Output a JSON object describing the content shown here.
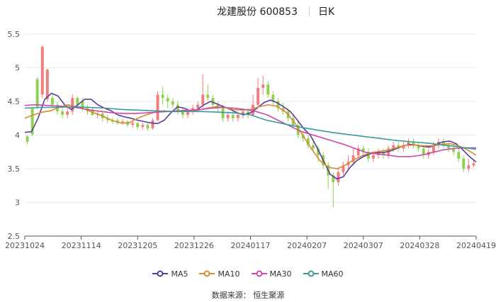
{
  "header": {
    "stock_name": "龙建股份 600853",
    "period": "日K"
  },
  "source_text": "数据来源： 恒生聚源",
  "colors": {
    "up": "#f37b7b",
    "down": "#8fd14f",
    "grid": "#e6ebf5",
    "axis": "#555555"
  },
  "chart_data": {
    "type": "candlestick",
    "title": "龙建股份 600853",
    "xlabel": "",
    "ylabel": "",
    "ylim": [
      2.5,
      5.5
    ],
    "yticks": [
      "2.5",
      "3",
      "3.5",
      "4",
      "4.5",
      "5",
      "5.5"
    ],
    "x_labels": [
      "20231024",
      "20231114",
      "20231205",
      "20231226",
      "20240117",
      "20240207",
      "20240307",
      "20240328",
      "20240419"
    ],
    "legend_position": "bottom",
    "grid": true,
    "legend": [
      {
        "name": "MA5",
        "color": "#5b3d99"
      },
      {
        "name": "MA10",
        "color": "#d98a32"
      },
      {
        "name": "MA30",
        "color": "#c94aaa"
      },
      {
        "name": "MA60",
        "color": "#3b9a9c"
      }
    ],
    "candles": [
      [
        3.98,
        3.9,
        4.0,
        3.86
      ],
      [
        4.4,
        4.01,
        4.42,
        3.98
      ],
      [
        4.83,
        4.42,
        4.86,
        4.38
      ],
      [
        4.6,
        5.31,
        5.34,
        4.55
      ],
      [
        4.53,
        4.97,
        4.98,
        4.5
      ],
      [
        4.55,
        4.45,
        4.6,
        4.4
      ],
      [
        4.45,
        4.35,
        4.5,
        4.3
      ],
      [
        4.35,
        4.3,
        4.4,
        4.25
      ],
      [
        4.3,
        4.35,
        4.4,
        4.25
      ],
      [
        4.35,
        4.55,
        4.6,
        4.3
      ],
      [
        4.55,
        4.45,
        4.58,
        4.4
      ],
      [
        4.5,
        4.4,
        4.55,
        4.35
      ],
      [
        4.4,
        4.35,
        4.45,
        4.3
      ],
      [
        4.38,
        4.3,
        4.4,
        4.28
      ],
      [
        4.3,
        4.32,
        4.35,
        4.25
      ],
      [
        4.32,
        4.25,
        4.35,
        4.2
      ],
      [
        4.25,
        4.22,
        4.3,
        4.18
      ],
      [
        4.22,
        4.2,
        4.26,
        4.16
      ],
      [
        4.22,
        4.18,
        4.25,
        4.15
      ],
      [
        4.18,
        4.2,
        4.24,
        4.15
      ],
      [
        4.2,
        4.15,
        4.22,
        4.12
      ],
      [
        4.15,
        4.18,
        4.2,
        4.1
      ],
      [
        4.18,
        4.12,
        4.2,
        4.08
      ],
      [
        4.12,
        4.15,
        4.18,
        4.08
      ],
      [
        4.15,
        4.1,
        4.18,
        4.06
      ],
      [
        4.1,
        4.22,
        4.25,
        4.08
      ],
      [
        4.22,
        4.6,
        4.65,
        4.2
      ],
      [
        4.6,
        4.55,
        4.72,
        4.45
      ],
      [
        4.55,
        4.5,
        4.6,
        4.4
      ],
      [
        4.5,
        4.45,
        4.55,
        4.4
      ],
      [
        4.45,
        4.35,
        4.5,
        4.3
      ],
      [
        4.35,
        4.3,
        4.4,
        4.25
      ],
      [
        4.3,
        4.35,
        4.4,
        4.25
      ],
      [
        4.35,
        4.4,
        4.45,
        4.3
      ],
      [
        4.4,
        4.45,
        4.5,
        4.35
      ],
      [
        4.45,
        4.6,
        4.9,
        4.4
      ],
      [
        4.6,
        4.55,
        4.75,
        4.5
      ],
      [
        4.55,
        4.45,
        4.6,
        4.4
      ],
      [
        4.45,
        4.4,
        4.5,
        4.35
      ],
      [
        4.4,
        4.25,
        4.45,
        4.2
      ],
      [
        4.25,
        4.3,
        4.35,
        4.2
      ],
      [
        4.3,
        4.25,
        4.35,
        4.2
      ],
      [
        4.25,
        4.3,
        4.35,
        4.2
      ],
      [
        4.3,
        4.35,
        4.4,
        4.25
      ],
      [
        4.35,
        4.3,
        4.4,
        4.25
      ],
      [
        4.3,
        4.45,
        4.6,
        4.28
      ],
      [
        4.45,
        4.7,
        4.85,
        4.4
      ],
      [
        4.7,
        4.75,
        4.88,
        4.6
      ],
      [
        4.75,
        4.6,
        4.8,
        4.55
      ],
      [
        4.6,
        4.5,
        4.65,
        4.45
      ],
      [
        4.5,
        4.4,
        4.55,
        4.35
      ],
      [
        4.4,
        4.35,
        4.48,
        4.3
      ],
      [
        4.35,
        4.25,
        4.4,
        4.2
      ],
      [
        4.25,
        4.15,
        4.3,
        4.1
      ],
      [
        4.15,
        4.0,
        4.2,
        3.95
      ],
      [
        4.0,
        3.95,
        4.05,
        3.9
      ],
      [
        3.95,
        3.85,
        4.0,
        3.8
      ],
      [
        3.85,
        3.8,
        3.95,
        3.75
      ],
      [
        3.8,
        3.7,
        3.85,
        3.6
      ],
      [
        3.7,
        3.55,
        3.75,
        3.5
      ],
      [
        3.55,
        3.4,
        3.6,
        3.2
      ],
      [
        3.4,
        3.3,
        3.45,
        2.92
      ],
      [
        3.3,
        3.45,
        3.5,
        3.25
      ],
      [
        3.45,
        3.55,
        3.6,
        3.4
      ],
      [
        3.55,
        3.6,
        3.7,
        3.5
      ],
      [
        3.6,
        3.7,
        3.8,
        3.55
      ],
      [
        3.7,
        3.8,
        3.85,
        3.65
      ],
      [
        3.8,
        3.75,
        3.85,
        3.7
      ],
      [
        3.75,
        3.65,
        3.8,
        3.6
      ],
      [
        3.65,
        3.7,
        3.75,
        3.6
      ],
      [
        3.7,
        3.75,
        3.8,
        3.65
      ],
      [
        3.75,
        3.7,
        3.8,
        3.65
      ],
      [
        3.7,
        3.8,
        3.85,
        3.65
      ],
      [
        3.8,
        3.85,
        3.9,
        3.75
      ],
      [
        3.85,
        3.8,
        3.9,
        3.75
      ],
      [
        3.8,
        3.85,
        3.9,
        3.75
      ],
      [
        3.85,
        3.9,
        3.95,
        3.8
      ],
      [
        3.9,
        3.85,
        3.95,
        3.8
      ],
      [
        3.85,
        3.8,
        3.9,
        3.75
      ],
      [
        3.8,
        3.7,
        3.85,
        3.65
      ],
      [
        3.7,
        3.75,
        3.8,
        3.65
      ],
      [
        3.75,
        3.85,
        3.9,
        3.7
      ],
      [
        3.85,
        3.9,
        3.95,
        3.8
      ],
      [
        3.9,
        3.85,
        3.95,
        3.8
      ],
      [
        3.85,
        3.8,
        3.9,
        3.75
      ],
      [
        3.8,
        3.75,
        3.85,
        3.7
      ],
      [
        3.75,
        3.65,
        3.8,
        3.6
      ],
      [
        3.65,
        3.5,
        3.7,
        3.45
      ],
      [
        3.5,
        3.55,
        3.65,
        3.45
      ],
      [
        3.55,
        3.58,
        3.62,
        3.52
      ]
    ],
    "ma": {
      "MA5": [
        4.04,
        4.05,
        4.25,
        4.53,
        4.62,
        4.58,
        4.45,
        4.38,
        4.45,
        4.53,
        4.53,
        4.45,
        4.4,
        4.36,
        4.3,
        4.27,
        4.25,
        4.22,
        4.2,
        4.18,
        4.17,
        4.22,
        4.33,
        4.42,
        4.4,
        4.35,
        4.38,
        4.45,
        4.5,
        4.46,
        4.42,
        4.38,
        4.33,
        4.3,
        4.33,
        4.4,
        4.48,
        4.52,
        4.48,
        4.42,
        4.35,
        4.23,
        4.1,
        4.0,
        3.82,
        3.62,
        3.42,
        3.35,
        3.38,
        3.52,
        3.62,
        3.68,
        3.72,
        3.74,
        3.74,
        3.76,
        3.8,
        3.84,
        3.86,
        3.85,
        3.83,
        3.82,
        3.86,
        3.9,
        3.91,
        3.87,
        3.78,
        3.68,
        3.6
      ],
      "MA10": [
        4.25,
        4.3,
        4.34,
        4.36,
        4.42,
        4.45,
        4.42,
        4.38,
        4.33,
        4.28,
        4.22,
        4.18,
        4.18,
        4.25,
        4.3,
        4.34,
        4.36,
        4.35,
        4.35,
        4.36,
        4.37,
        4.4,
        4.42,
        4.41,
        4.38,
        4.37,
        4.38,
        4.42,
        4.45,
        4.43,
        4.35,
        4.2,
        4.0,
        3.8,
        3.62,
        3.52,
        3.5,
        3.56,
        3.64,
        3.7,
        3.74,
        3.76,
        3.78,
        3.82,
        3.85,
        3.85,
        3.84,
        3.84,
        3.86,
        3.87,
        3.84,
        3.78,
        3.7
      ],
      "MA30": [
        4.44,
        4.45,
        4.44,
        4.43,
        4.42,
        4.4,
        4.37,
        4.35,
        4.33,
        4.32,
        4.32,
        4.33,
        4.34,
        4.35,
        4.36,
        4.37,
        4.38,
        4.4,
        4.41,
        4.4,
        4.38,
        4.35,
        4.3,
        4.22,
        4.14,
        4.06,
        4.01,
        3.96,
        3.91,
        3.86,
        3.8,
        3.74,
        3.72,
        3.7,
        3.68,
        3.68,
        3.7,
        3.74,
        3.78,
        3.8,
        3.81,
        3.81
      ],
      "MA60": [
        4.4,
        4.41,
        4.41,
        4.42,
        4.41,
        4.4,
        4.38,
        4.37,
        4.36,
        4.35,
        4.35,
        4.35,
        4.34,
        4.33,
        4.3,
        4.22,
        4.17,
        4.12,
        4.08,
        4.04,
        4.01,
        3.98,
        3.95,
        3.92,
        3.9,
        3.88,
        3.85,
        3.82,
        3.79
      ]
    }
  }
}
